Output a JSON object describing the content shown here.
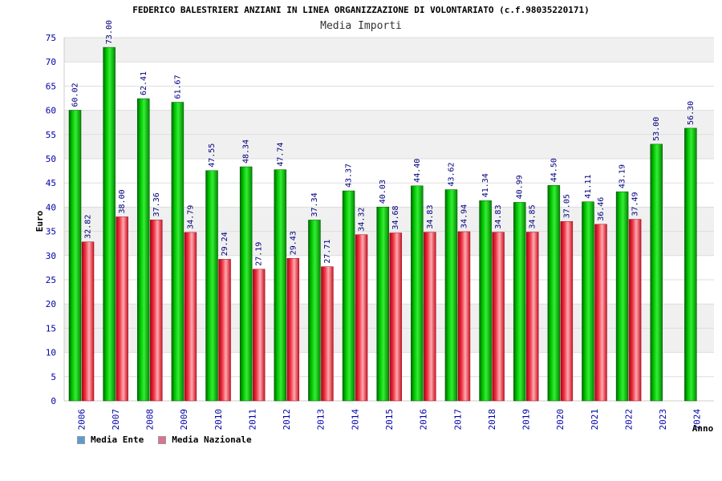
{
  "chart_data": {
    "type": "bar",
    "title": "FEDERICO BALESTRIERI ANZIANI IN LINEA ORGANIZZAZIONE DI VOLONTARIATO (c.f.98035220171)",
    "subtitle": "Media Importi",
    "xlabel": "Anno",
    "ylabel": "Euro",
    "ylim": [
      0,
      75
    ],
    "yticks": [
      0,
      5,
      10,
      15,
      20,
      25,
      30,
      35,
      40,
      45,
      50,
      55,
      60,
      65,
      70,
      75
    ],
    "grid": true,
    "legend_position": "bottom-left",
    "categories": [
      "2006",
      "2007",
      "2008",
      "2009",
      "2010",
      "2011",
      "2012",
      "2013",
      "2014",
      "2015",
      "2016",
      "2017",
      "2018",
      "2019",
      "2020",
      "2021",
      "2022",
      "2023",
      "2024"
    ],
    "series": [
      {
        "name": "Media Ente",
        "color": "#00aa00",
        "legend_color": "#5b9bd5",
        "values": [
          60.02,
          73.0,
          62.41,
          61.67,
          47.55,
          48.34,
          47.74,
          37.34,
          43.37,
          40.03,
          44.4,
          43.62,
          41.34,
          40.99,
          44.5,
          41.11,
          43.19,
          53.0,
          56.3
        ],
        "labels": [
          "60.02",
          "73.00",
          "62.41",
          "61.67",
          "47.55",
          "48.34",
          "47.74",
          "37.34",
          "43.37",
          "40.03",
          "44.40",
          "43.62",
          "41.34",
          "40.99",
          "44.50",
          "41.11",
          "43.19",
          "53.00",
          "56.30"
        ]
      },
      {
        "name": "Media Nazionale",
        "color": "#dd2233",
        "legend_color": "#e07090",
        "values": [
          32.82,
          38.0,
          37.36,
          34.79,
          29.24,
          27.19,
          29.43,
          27.71,
          34.32,
          34.68,
          34.83,
          34.94,
          34.83,
          34.85,
          37.05,
          36.46,
          37.49,
          null,
          null
        ],
        "labels": [
          "32.82",
          "38.00",
          "37.36",
          "34.79",
          "29.24",
          "27.19",
          "29.43",
          "27.71",
          "34.32",
          "34.68",
          "34.83",
          "34.94",
          "34.83",
          "34.85",
          "37.05",
          "36.46",
          "37.49",
          null,
          null
        ]
      }
    ]
  },
  "colors": {
    "axis_text": "#0000aa",
    "label_text": "#000080",
    "band_light": "#ffffff",
    "band_dark": "#f0f0f0"
  }
}
